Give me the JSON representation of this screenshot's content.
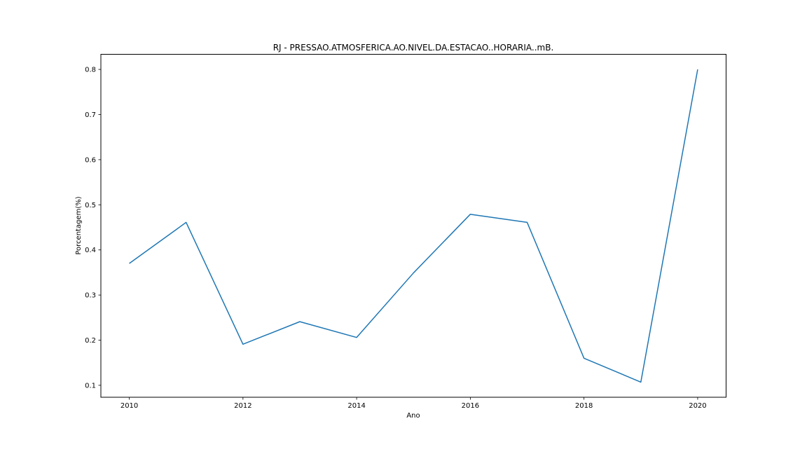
{
  "chart_data": {
    "type": "line",
    "title": "RJ - PRESSAO.ATMOSFERICA.AO.NIVEL.DA.ESTACAO..HORARIA..mB.",
    "xlabel": "Ano",
    "ylabel": "Porcentagem(%)",
    "x": [
      2010,
      2011,
      2012,
      2013,
      2014,
      2015,
      2016,
      2017,
      2018,
      2019,
      2020
    ],
    "series": [
      {
        "values": [
          0.37,
          0.461,
          0.191,
          0.241,
          0.206,
          0.349,
          0.479,
          0.461,
          0.16,
          0.107,
          0.8
        ],
        "color": "#1f77b4"
      }
    ],
    "xlim": [
      2009.5,
      2020.5
    ],
    "ylim": [
      0.0735,
      0.8335
    ],
    "xticks": [
      2010,
      2012,
      2014,
      2016,
      2018,
      2020
    ],
    "yticks": [
      0.1,
      0.2,
      0.3,
      0.4,
      0.5,
      0.6,
      0.7,
      0.8
    ],
    "grid": false,
    "legend": "none"
  }
}
